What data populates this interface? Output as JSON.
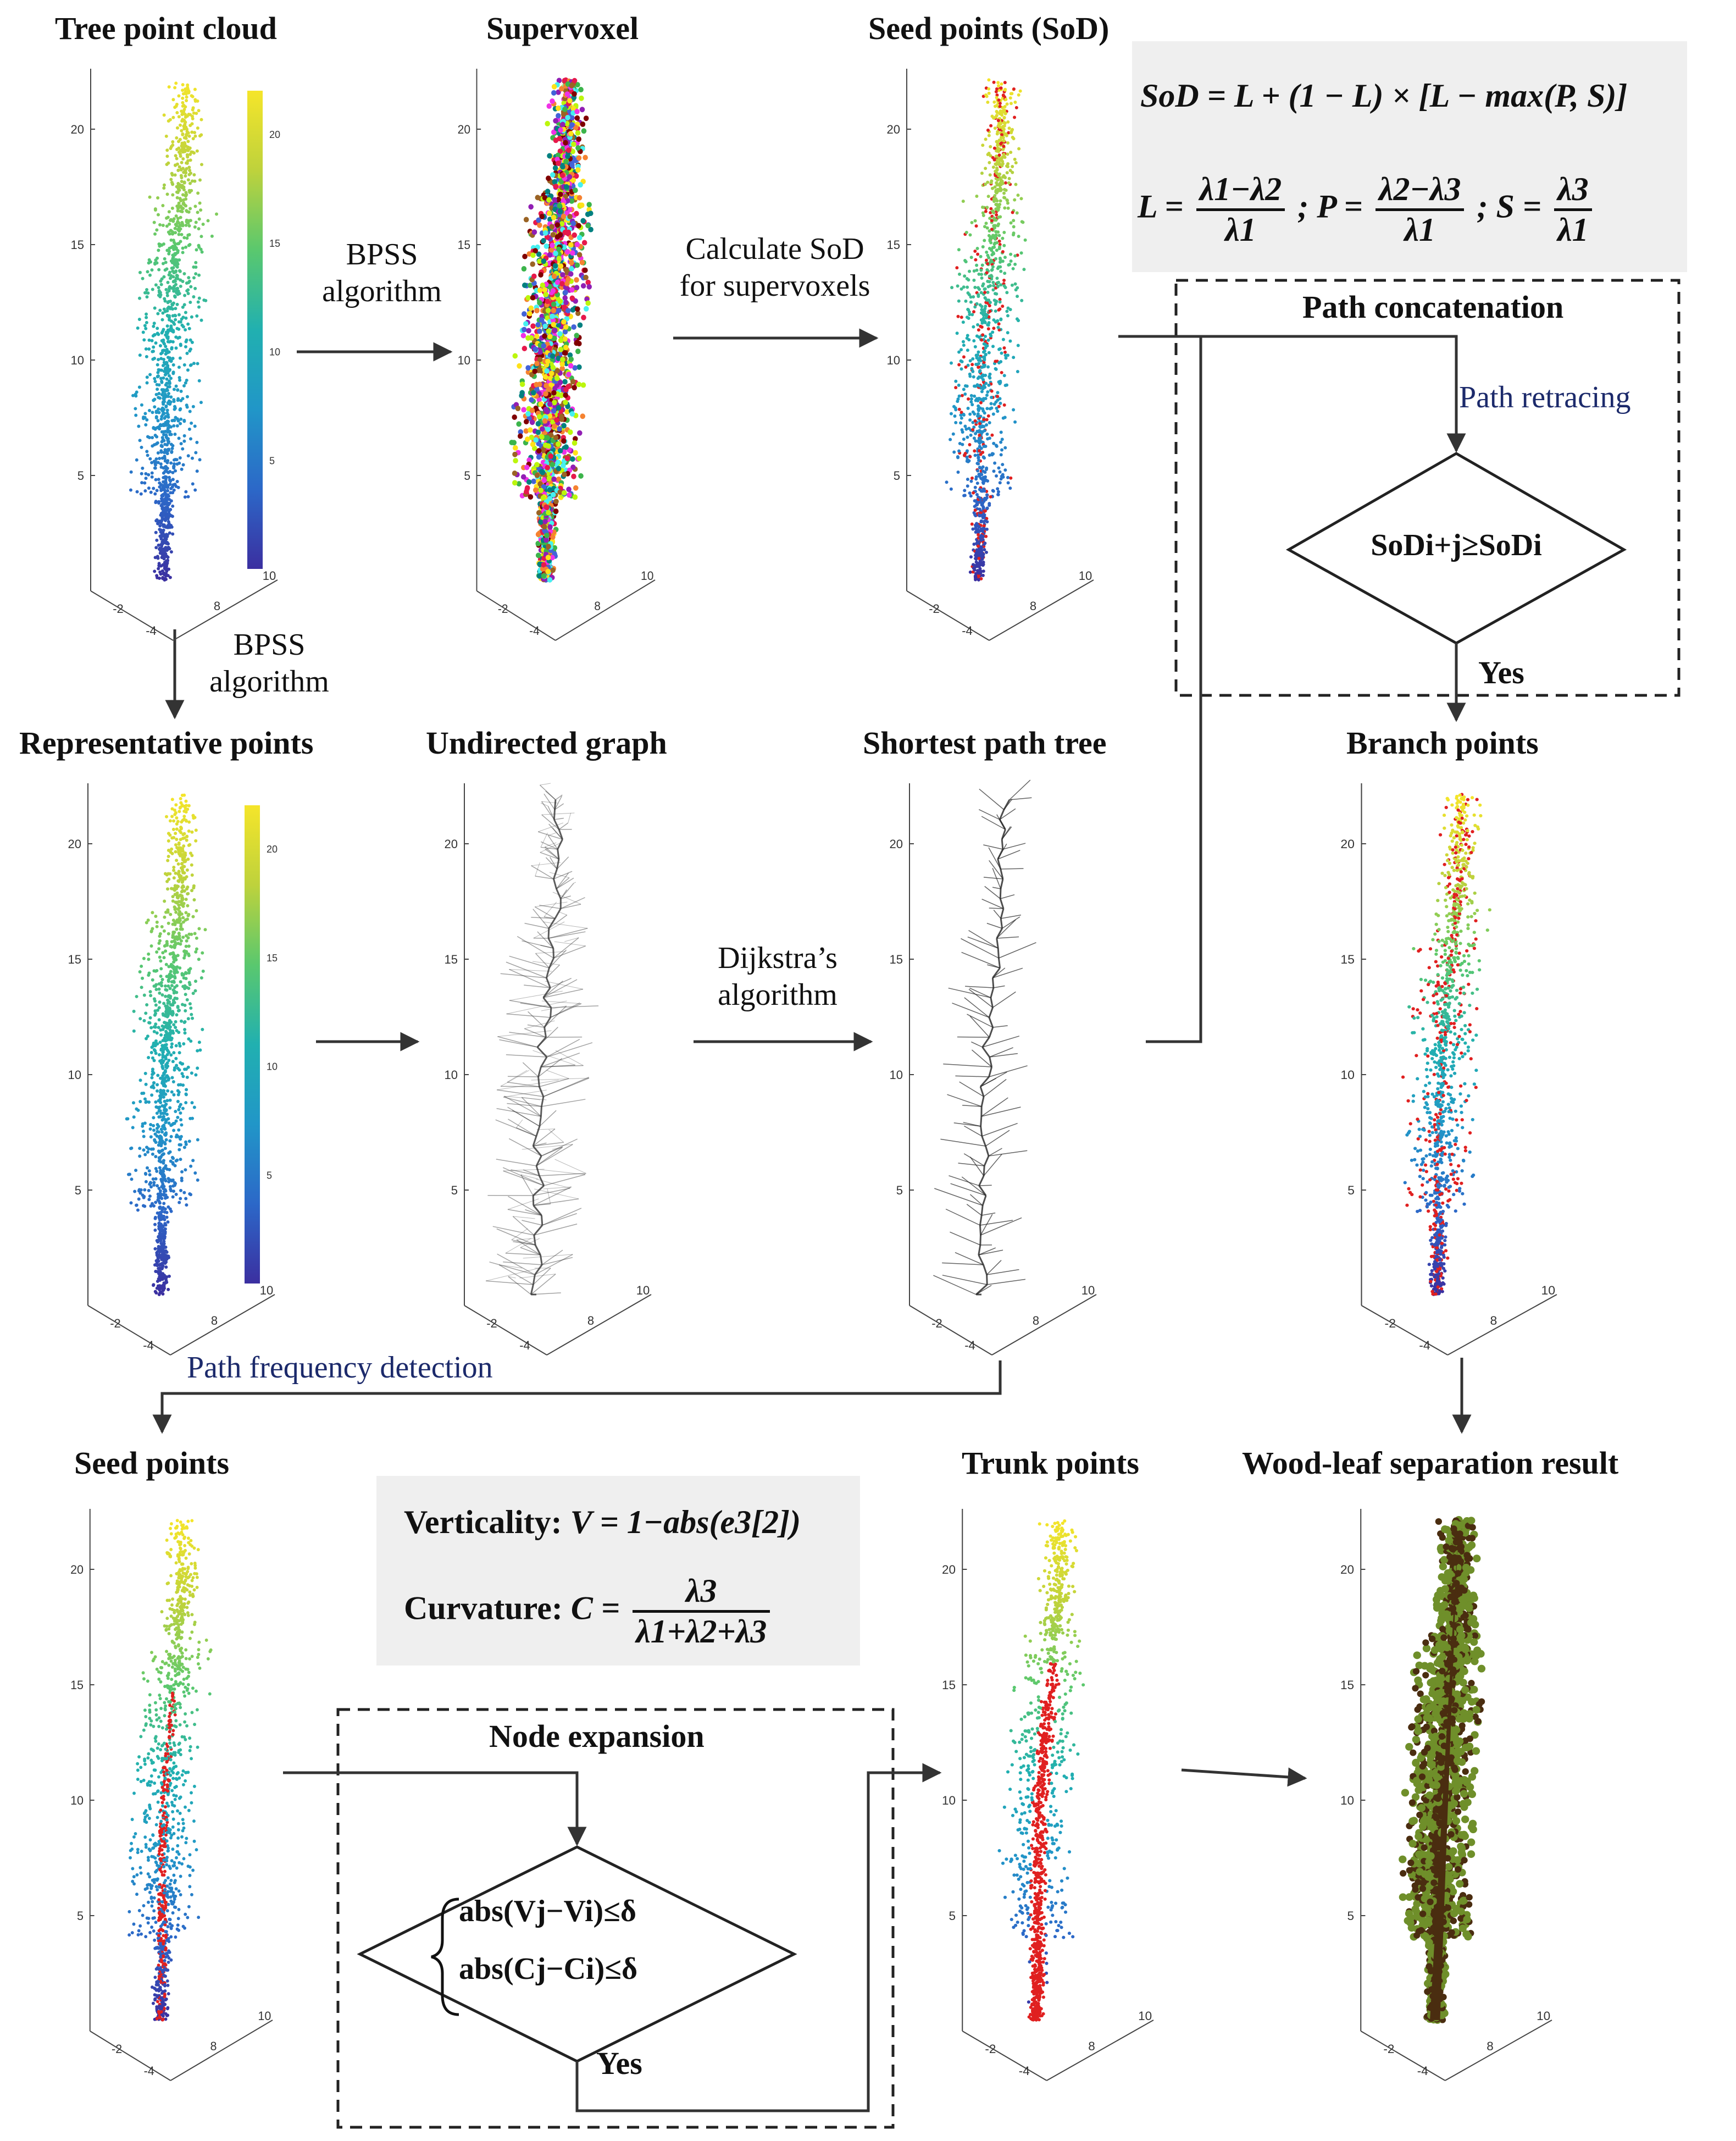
{
  "titles": {
    "tree_point_cloud": "Tree point cloud",
    "supervoxel": "Supervoxel",
    "seed_points_sod": "Seed points (SoD)",
    "representative_points": "Representative points",
    "undirected_graph": "Undirected graph",
    "shortest_path_tree": "Shortest path tree",
    "branch_points": "Branch points",
    "seed_points": "Seed points",
    "trunk_points": "Trunk points",
    "wood_leaf_result": "Wood-leaf separation result",
    "path_concatenation": "Path concatenation",
    "node_expansion": "Node expansion"
  },
  "arrows": {
    "bpss_1": "BPSS",
    "bpss_1b": "algorithm",
    "calc_sod_1": "Calculate SoD",
    "calc_sod_2": "for supervoxels",
    "bpss_2": "BPSS",
    "bpss_2b": "algorithm",
    "dijkstra_1": "Dijkstra’s",
    "dijkstra_2": "algorithm",
    "path_retracing": "Path retracing",
    "path_frequency": "Path frequency detection",
    "yes_1": "Yes",
    "yes_2": "Yes"
  },
  "formulas": {
    "sod_lhs": "SoD = L + (1 − L) × [L − max(P, S)]",
    "L_lhs": "L =",
    "L_num": "λ1−λ2",
    "L_den": "λ1",
    "P_lhs": "; P =",
    "P_num": "λ2−λ3",
    "P_den": "λ1",
    "S_lhs": "; S =",
    "S_num": "λ3",
    "S_den": "λ1",
    "verticality_label": "Verticality:",
    "verticality_expr": "V = 1−abs(e3[2])",
    "curvature_label": "Curvature:",
    "curvature_lhs": "C =",
    "curvature_num": "λ3",
    "curvature_den": "λ1+λ2+λ3",
    "cond_sod": "SoDi+j≥SoDi",
    "cond_v": "abs(Vj−Vi)≤δ",
    "cond_c": "abs(Cj−Ci)≤δ"
  },
  "axes": {
    "z_ticks": [
      "5",
      "10",
      "15",
      "20"
    ],
    "x_ticks": [
      "-2",
      "-4"
    ],
    "y_ticks": [
      "8",
      "10"
    ],
    "colorbar_ticks": [
      "5",
      "10",
      "15",
      "20"
    ]
  },
  "colors": {
    "viridis_low": "#3b2fa0",
    "viridis_mid": "#21b0b0",
    "viridis_high": "#f5e52a",
    "seed_red": "#e02020",
    "wood": "#4a2d10",
    "leaf": "#6f8f2a",
    "formula_bg": "#efefef"
  }
}
